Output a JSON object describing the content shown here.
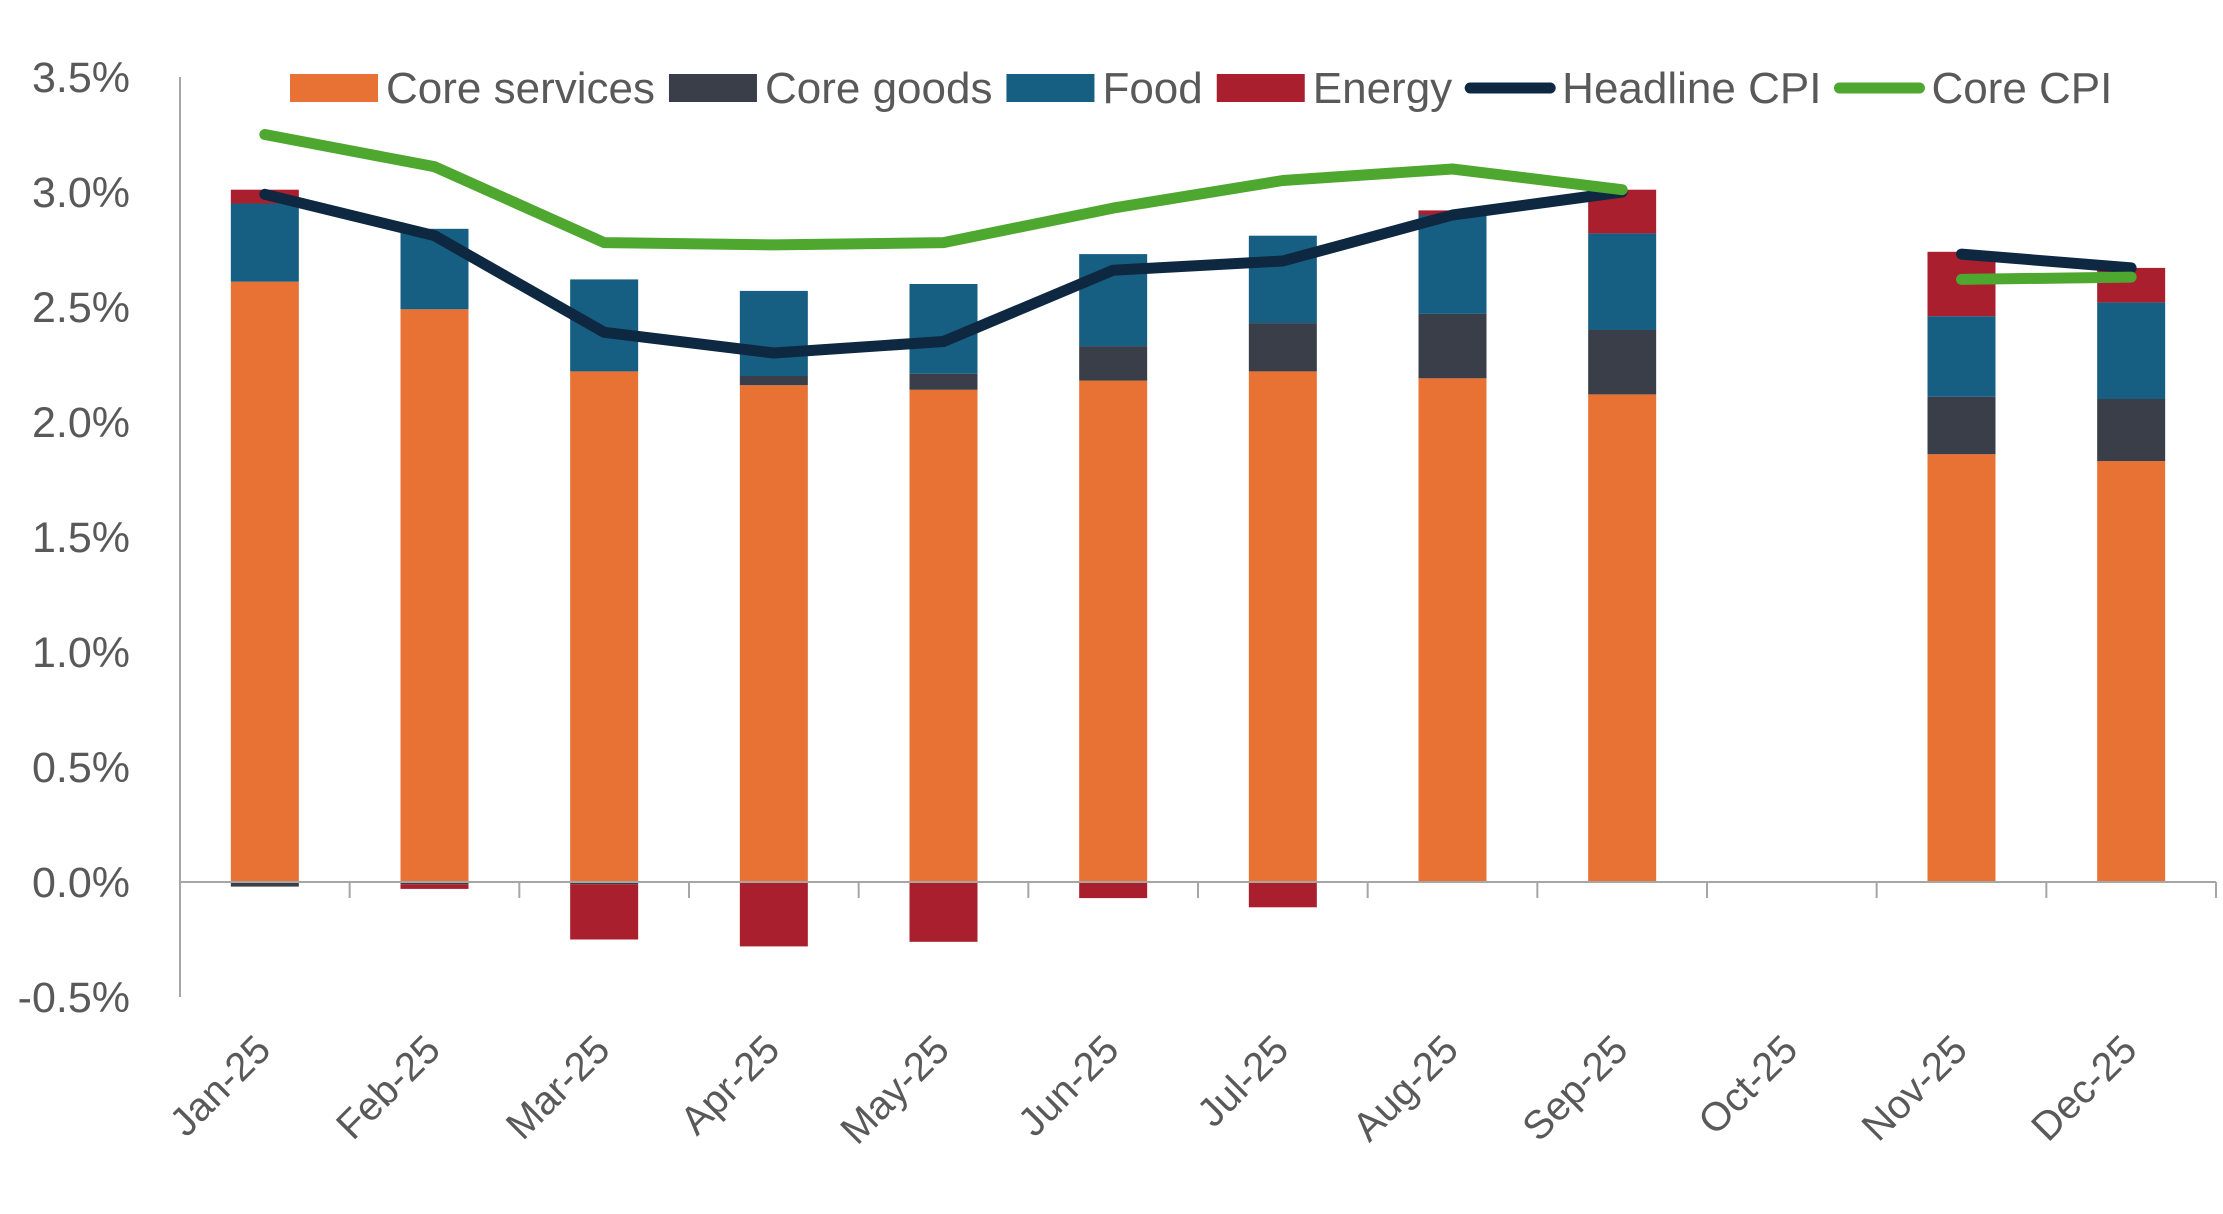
{
  "chart_data": {
    "type": "bar",
    "stacked": true,
    "title": "",
    "xlabel": "",
    "ylabel": "",
    "ylim": [
      -0.5,
      3.5
    ],
    "y_ticks": [
      -0.5,
      0.0,
      0.5,
      1.0,
      1.5,
      2.0,
      2.5,
      3.0,
      3.5
    ],
    "y_tick_labels": [
      "-0.5%",
      "0.0%",
      "0.5%",
      "1.0%",
      "1.5%",
      "2.0%",
      "2.5%",
      "3.0%",
      "3.5%"
    ],
    "grid": false,
    "legend_position": "top",
    "categories": [
      "Jan-25",
      "Feb-25",
      "Mar-25",
      "Apr-25",
      "May-25",
      "Jun-25",
      "Jul-25",
      "Aug-25",
      "Sep-25",
      "Oct-25",
      "Nov-25",
      "Dec-25"
    ],
    "series": [
      {
        "name": "Core services",
        "kind": "bar",
        "color": "#E87234",
        "values": [
          2.61,
          2.49,
          2.22,
          2.16,
          2.14,
          2.18,
          2.22,
          2.19,
          2.12,
          null,
          1.86,
          1.83
        ]
      },
      {
        "name": "Core goods",
        "kind": "bar",
        "color": "#3A3E48",
        "values": [
          -0.02,
          -0.01,
          -0.01,
          0.04,
          0.07,
          0.15,
          0.21,
          0.28,
          0.28,
          null,
          0.25,
          0.27
        ]
      },
      {
        "name": "Food",
        "kind": "bar",
        "color": "#175F82",
        "values": [
          0.34,
          0.35,
          0.4,
          0.37,
          0.39,
          0.4,
          0.38,
          0.43,
          0.42,
          null,
          0.35,
          0.42
        ]
      },
      {
        "name": "Energy",
        "kind": "bar",
        "color": "#AA1F2E",
        "values": [
          0.06,
          -0.02,
          -0.24,
          -0.28,
          -0.26,
          -0.07,
          -0.11,
          0.02,
          0.19,
          null,
          0.28,
          0.15
        ]
      },
      {
        "name": "Headline CPI",
        "kind": "line",
        "color": "#0E2841",
        "values": [
          2.99,
          2.81,
          2.39,
          2.3,
          2.35,
          2.66,
          2.7,
          2.9,
          3.0,
          null,
          2.73,
          2.67
        ]
      },
      {
        "name": "Core CPI",
        "kind": "line",
        "color": "#4EA72E",
        "values": [
          3.25,
          3.11,
          2.78,
          2.77,
          2.78,
          2.93,
          3.05,
          3.1,
          3.01,
          null,
          2.62,
          2.63
        ]
      }
    ]
  }
}
